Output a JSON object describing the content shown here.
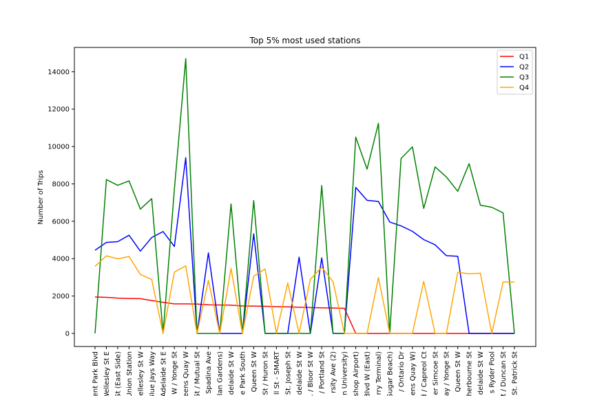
{
  "chart_data": {
    "type": "line",
    "title": "Top 5% most used stations",
    "xlabel": "",
    "ylabel": "Number of Trips",
    "ylim": [
      -700,
      15300
    ],
    "yticks": [
      0,
      2000,
      4000,
      6000,
      8000,
      10000,
      12000,
      14000
    ],
    "grid": false,
    "legend_position": "top-right",
    "categories": [
      "ent Park Blvd",
      "Wellesley St E",
      "St (East Side)",
      "Union Station",
      "ellesley St W",
      "Blue Jays Way",
      "Adelaide St E",
      "W / Yonge St",
      "eens Quay W",
      "St / Mutual St",
      "Spadina Ave",
      "lan Gardens)",
      "delaide St W",
      "e Park South",
      "Queen St W",
      "St / Huron St",
      "ll St - SMART",
      "St. Joseph St",
      "delaide St W",
      ". / Bloor St W",
      "/ Portland St",
      "rsity Ave (2)",
      "n University)",
      "shop Airport)",
      "Blvd W (East)",
      "rry Terminal)",
      "Sugar Beach)",
      "/ Ontario Dr",
      "ens Quay W)",
      "d / Capreol Ct",
      "er Simcoe St",
      "ay / Yonge St",
      "Queen St W",
      "herbourne St",
      "delaide St W",
      "s Ryder Pool",
      "t / Duncan St",
      "St. Patrick St"
    ],
    "series": [
      {
        "name": "Q1",
        "color": "#ff0000",
        "values": [
          1950,
          1930,
          1890,
          1870,
          1860,
          1760,
          1660,
          1580,
          1580,
          1570,
          1530,
          1520,
          1510,
          1470,
          1460,
          1450,
          1430,
          1420,
          1400,
          1380,
          1370,
          1360,
          1340,
          0,
          0,
          0,
          0,
          0,
          0,
          0,
          0,
          0,
          0,
          0,
          0,
          0,
          0,
          0
        ]
      },
      {
        "name": "Q2",
        "color": "#0000ff",
        "values": [
          4450,
          4870,
          4910,
          5250,
          4400,
          5130,
          5450,
          4650,
          9400,
          0,
          4310,
          0,
          0,
          0,
          5330,
          0,
          0,
          0,
          4080,
          0,
          4040,
          0,
          0,
          7810,
          7120,
          7060,
          5960,
          5750,
          5460,
          5020,
          4740,
          4160,
          4130,
          0,
          0,
          0,
          0,
          0
        ]
      },
      {
        "name": "Q3",
        "color": "#008000",
        "values": [
          0,
          8230,
          7920,
          8160,
          6650,
          7210,
          0,
          7700,
          14700,
          0,
          0,
          0,
          6930,
          0,
          7110,
          0,
          0,
          0,
          0,
          0,
          7910,
          0,
          0,
          10500,
          8790,
          11240,
          0,
          9360,
          9980,
          6690,
          8910,
          8370,
          7600,
          9080,
          6860,
          6750,
          6450,
          0
        ]
      },
      {
        "name": "Q4",
        "color": "#ffa500",
        "values": [
          3590,
          4150,
          3990,
          4120,
          3150,
          2890,
          0,
          3280,
          3610,
          0,
          2840,
          0,
          3480,
          0,
          3060,
          3450,
          0,
          2700,
          0,
          2900,
          3540,
          2770,
          0,
          0,
          0,
          2990,
          0,
          0,
          0,
          2790,
          0,
          0,
          3270,
          3190,
          3220,
          0,
          2750,
          2750
        ]
      }
    ]
  }
}
